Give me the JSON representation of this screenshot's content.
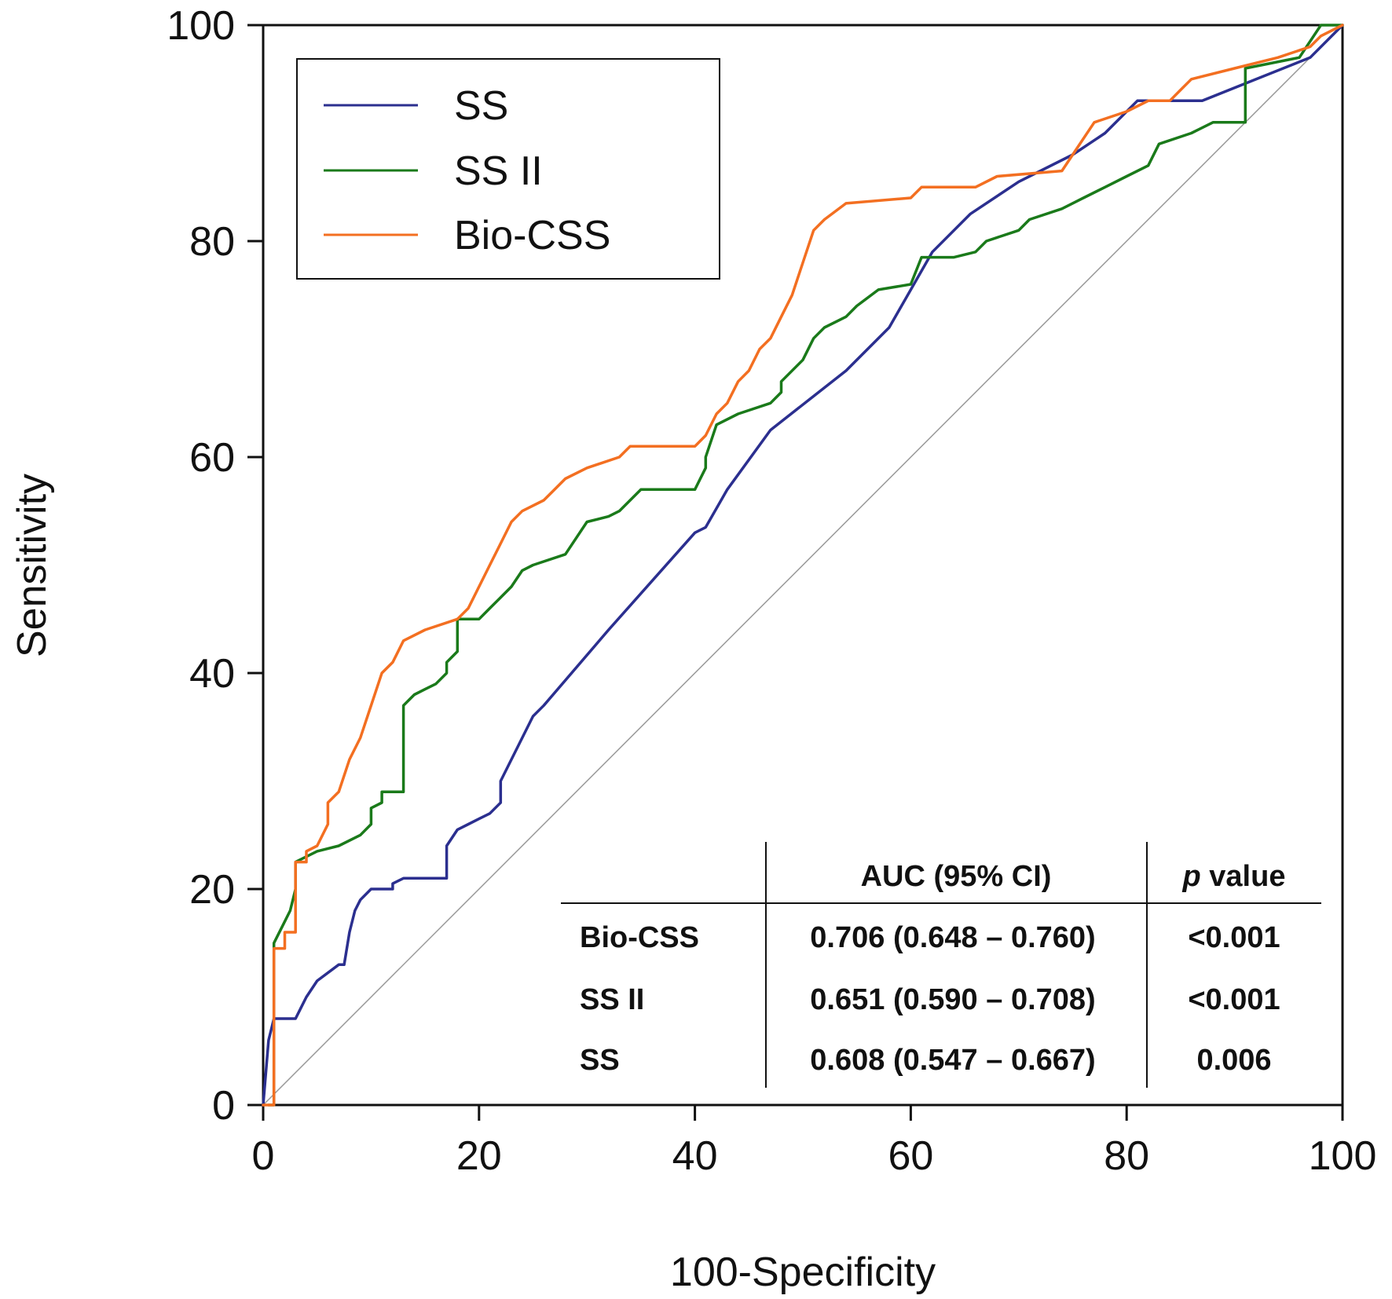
{
  "chart_data": {
    "type": "line",
    "title": "",
    "xlabel": "100-Specificity",
    "ylabel": "Sensitivity",
    "xlim": [
      0,
      100
    ],
    "ylim": [
      0,
      100
    ],
    "xticks": [
      "0",
      "20",
      "40",
      "60",
      "80",
      "100"
    ],
    "yticks": [
      "0",
      "20",
      "40",
      "60",
      "80",
      "100"
    ],
    "grid": false,
    "legend_position": "top-left",
    "reference_line": {
      "name": "chance",
      "x": [
        0,
        100
      ],
      "y": [
        0,
        100
      ],
      "color": "#999999"
    },
    "series": [
      {
        "name": "SS",
        "color": "#2b2f8f",
        "x": [
          0,
          0.5,
          1,
          3,
          4,
          5,
          7,
          7.5,
          8,
          8.5,
          9,
          10,
          12,
          12,
          13,
          17,
          17,
          18,
          19,
          20,
          21,
          22,
          22,
          25,
          26,
          32,
          40,
          41,
          43,
          47,
          54,
          58,
          62,
          65.5,
          70,
          75,
          78,
          81,
          82,
          87,
          92,
          97,
          100
        ],
        "y": [
          0,
          6,
          8,
          8,
          10,
          11.5,
          13,
          13,
          16,
          18,
          19,
          20,
          20,
          20.5,
          21,
          21,
          24,
          25.5,
          26,
          26.5,
          27,
          28,
          30,
          36,
          37,
          44,
          53,
          53.5,
          57,
          62.5,
          68,
          72,
          79,
          82.5,
          85.5,
          88,
          90,
          93,
          93,
          93,
          95,
          97,
          100
        ]
      },
      {
        "name": "SS II",
        "color": "#1a7a1a",
        "x": [
          0.5,
          1,
          1,
          2,
          2.5,
          3,
          3,
          5,
          7,
          9,
          10,
          10,
          11,
          11,
          13,
          13,
          14,
          15,
          16,
          17,
          17,
          18,
          18,
          20,
          21,
          22,
          23,
          24,
          25,
          28,
          30,
          32,
          33,
          35,
          40,
          41,
          41,
          42,
          44,
          47,
          48,
          48,
          50,
          51,
          52,
          54,
          55,
          57,
          60,
          61,
          64,
          66,
          67,
          70,
          71,
          74,
          76,
          78,
          80,
          82,
          83,
          86,
          88,
          91,
          91,
          96,
          98,
          100
        ],
        "y": [
          0,
          0,
          15,
          17,
          18,
          20,
          22.5,
          23.5,
          24,
          25,
          26,
          27.5,
          28,
          29,
          29,
          37,
          38,
          38.5,
          39,
          40,
          41,
          42,
          45,
          45,
          46,
          47,
          48,
          49.5,
          50,
          51,
          54,
          54.5,
          55,
          57,
          57,
          59,
          60,
          63,
          64,
          65,
          66,
          67,
          69,
          71,
          72,
          73,
          74,
          75.5,
          76,
          78.5,
          78.5,
          79,
          80,
          81,
          82,
          83,
          84,
          85,
          86,
          87,
          89,
          90,
          91,
          91,
          96,
          97,
          100,
          100
        ]
      },
      {
        "name": "Bio-CSS",
        "color": "#f36f21",
        "x": [
          0,
          1,
          1,
          2,
          2,
          3,
          3,
          4,
          4,
          5,
          6,
          6,
          7,
          8,
          9,
          10,
          11,
          12,
          13,
          15,
          18,
          19,
          20,
          21,
          22,
          23,
          24,
          26,
          27,
          28,
          30,
          33,
          34,
          40,
          41,
          42,
          43,
          44,
          45,
          46,
          47,
          48,
          49,
          50,
          51,
          52,
          54,
          60,
          61,
          66,
          68,
          74,
          75,
          77,
          80,
          82,
          84,
          85,
          86,
          90,
          94,
          97,
          98,
          100
        ],
        "y": [
          0,
          0,
          14.5,
          14.5,
          16,
          16,
          22.5,
          22.5,
          23.5,
          24,
          26,
          28,
          29,
          32,
          34,
          37,
          40,
          41,
          43,
          44,
          45,
          46,
          48,
          50,
          52,
          54,
          55,
          56,
          57,
          58,
          59,
          60,
          61,
          61,
          62,
          64,
          65,
          67,
          68,
          70,
          71,
          73,
          75,
          78,
          81,
          82,
          83.5,
          84,
          85,
          85,
          86,
          86.5,
          88,
          91,
          92,
          93,
          93,
          94,
          95,
          96,
          97,
          98,
          99,
          100
        ]
      }
    ]
  },
  "auc_table": {
    "headers": {
      "model": "",
      "auc": "AUC (95% CI)",
      "p_italic": "p",
      "p_rest": " value"
    },
    "rows": [
      {
        "model": "Bio-CSS",
        "auc": "0.706 (0.648 – 0.760)",
        "p": "<0.001"
      },
      {
        "model": "SS II",
        "auc": "0.651 (0.590 – 0.708)",
        "p": "<0.001"
      },
      {
        "model": "SS",
        "auc": "0.608 (0.547 – 0.667)",
        "p": "0.006"
      }
    ]
  }
}
